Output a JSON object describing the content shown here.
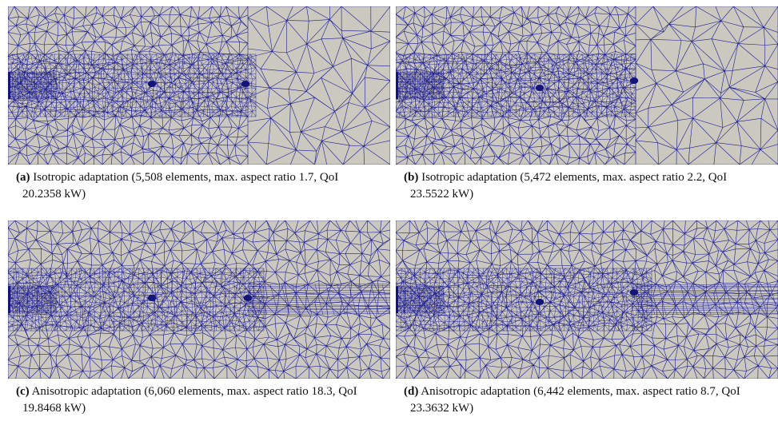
{
  "panels": [
    {
      "label": "(a)",
      "caption": "Isotropic adaptation (5,508 elements, max. aspect ratio 1.7, QoI 20.2358 kW)"
    },
    {
      "label": "(b)",
      "caption": "Isotropic adaptation (5,472 elements, max. aspect ratio 2.2, QoI 23.5522 kW)"
    },
    {
      "label": "(c)",
      "caption": "Anisotropic adaptation (6,060 elements, max. aspect ratio 18.3, QoI 19.8468 kW)"
    },
    {
      "label": "(d)",
      "caption": "Anisotropic adaptation (6,442 elements, max. aspect ratio 8.7, QoI 23.3632 kW)"
    }
  ]
}
